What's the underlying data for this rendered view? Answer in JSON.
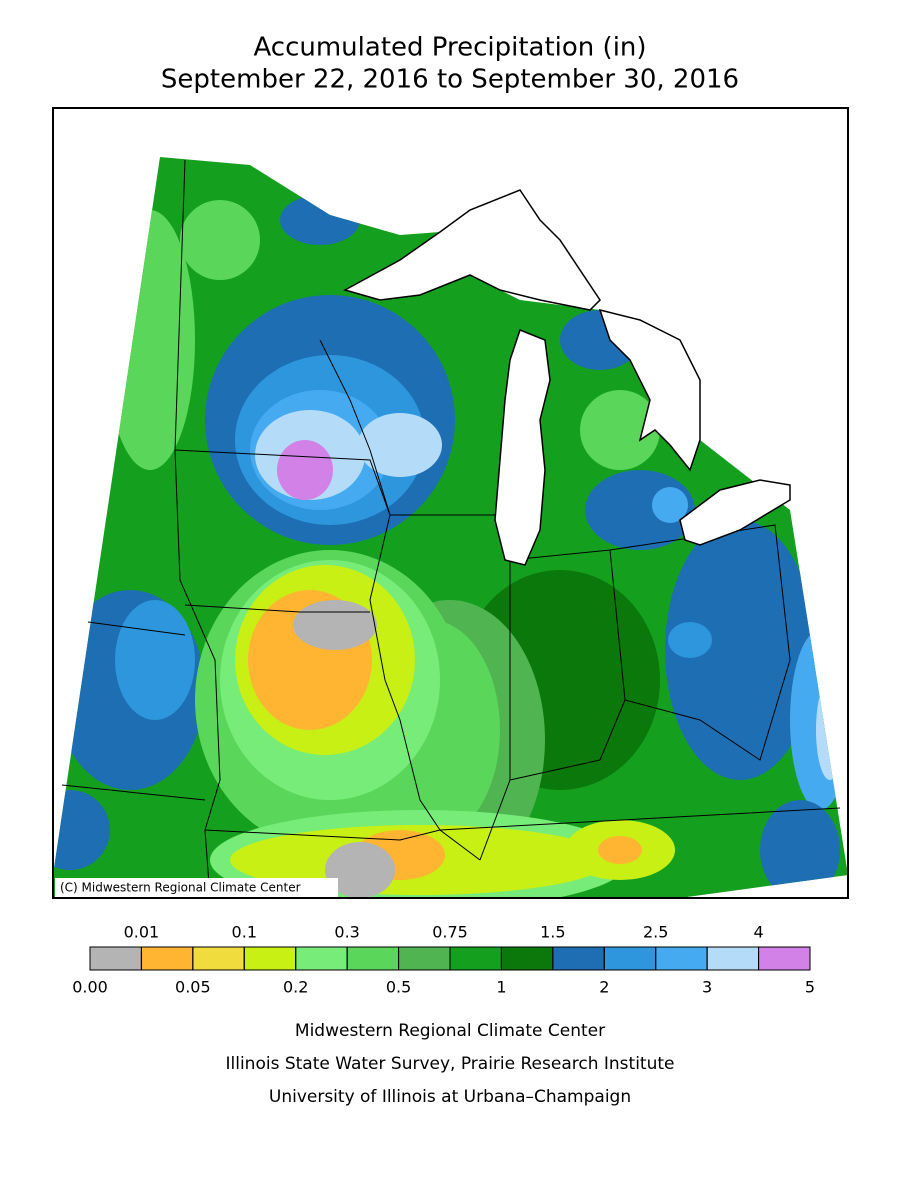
{
  "header": {
    "title": [
      "Accumulated Precipitation (in)",
      "September 22, 2016 to September 30, 2016"
    ]
  },
  "map": {
    "copyright": "(C) Midwestern Regional Climate Center"
  },
  "legend": {
    "colors": [
      "#b4b4b4",
      "#ffb432",
      "#f0dc3c",
      "#c8f014",
      "#78ec78",
      "#5ad75a",
      "#50b450",
      "#14a01e",
      "#0a780a",
      "#1e6eb4",
      "#2d96dc",
      "#46aaf0",
      "#b4dcf8",
      "#d282e6"
    ],
    "boundaries": [
      {
        "value": 0,
        "label": "0.00"
      },
      0.01,
      0.05,
      0.1,
      0.2,
      0.3,
      0.5,
      0.75,
      1,
      1.5,
      2,
      2.5,
      3,
      4,
      5
    ]
  },
  "credits": [
    "Midwestern Regional Climate Center",
    "Illinois State Water Survey, Prairie Research Institute",
    "University of Illinois at Urbana–Champaign"
  ]
}
